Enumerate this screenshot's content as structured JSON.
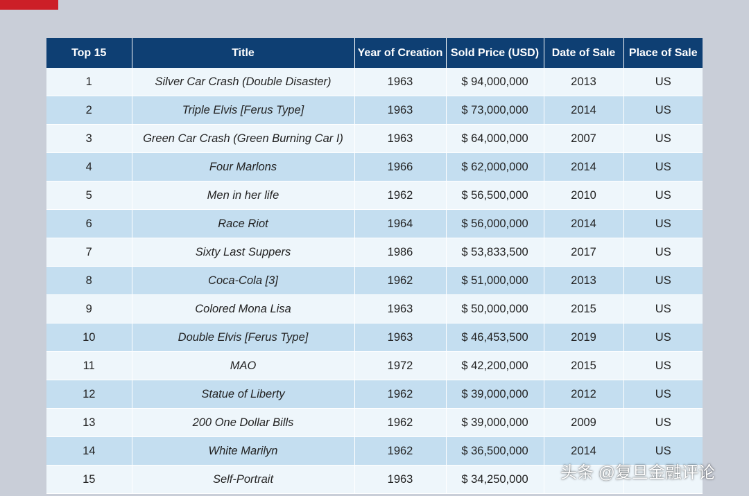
{
  "colors": {
    "header_bg": "#0e3f73",
    "row_light": "#eef6fb",
    "row_dark": "#c4def0",
    "page_bg": "#c9ced8",
    "accent_red": "#cc1f27"
  },
  "table": {
    "headers": [
      "Top 15",
      "Title",
      "Year of Creation",
      "Sold Price (USD)",
      "Date of Sale",
      "Place of Sale"
    ],
    "rows": [
      {
        "rank": "1",
        "title": "Silver Car Crash (Double Disaster)",
        "year": "1963",
        "price": "$ 94,000,000",
        "date": "2013",
        "place": "US"
      },
      {
        "rank": "2",
        "title": "Triple Elvis [Ferus Type]",
        "year": "1963",
        "price": "$ 73,000,000",
        "date": "2014",
        "place": "US"
      },
      {
        "rank": "3",
        "title": "Green Car Crash (Green Burning Car I)",
        "year": "1963",
        "price": "$ 64,000,000",
        "date": "2007",
        "place": "US"
      },
      {
        "rank": "4",
        "title": "Four Marlons",
        "year": "1966",
        "price": "$ 62,000,000",
        "date": "2014",
        "place": "US"
      },
      {
        "rank": "5",
        "title": "Men in her life",
        "year": "1962",
        "price": "$ 56,500,000",
        "date": "2010",
        "place": "US"
      },
      {
        "rank": "6",
        "title": "Race Riot",
        "year": "1964",
        "price": "$ 56,000,000",
        "date": "2014",
        "place": "US"
      },
      {
        "rank": "7",
        "title": "Sixty Last Suppers",
        "year": "1986",
        "price": "$ 53,833,500",
        "date": "2017",
        "place": "US"
      },
      {
        "rank": "8",
        "title": "Coca-Cola [3]",
        "year": "1962",
        "price": "$ 51,000,000",
        "date": "2013",
        "place": "US"
      },
      {
        "rank": "9",
        "title": "Colored Mona Lisa",
        "year": "1963",
        "price": "$ 50,000,000",
        "date": "2015",
        "place": "US"
      },
      {
        "rank": "10",
        "title": "Double Elvis [Ferus Type]",
        "year": "1963",
        "price": "$ 46,453,500",
        "date": "2019",
        "place": "US"
      },
      {
        "rank": "11",
        "title": "MAO",
        "year": "1972",
        "price": "$ 42,200,000",
        "date": "2015",
        "place": "US"
      },
      {
        "rank": "12",
        "title": "Statue of Liberty",
        "year": "1962",
        "price": "$ 39,000,000",
        "date": "2012",
        "place": "US"
      },
      {
        "rank": "13",
        "title": "200 One Dollar Bills",
        "year": "1962",
        "price": "$ 39,000,000",
        "date": "2009",
        "place": "US"
      },
      {
        "rank": "14",
        "title": "White Marilyn",
        "year": "1962",
        "price": "$ 36,500,000",
        "date": "2014",
        "place": "US"
      },
      {
        "rank": "15",
        "title": "Self-Portrait",
        "year": "1963",
        "price": "$ 34,250,000",
        "date": "",
        "place": ""
      }
    ]
  },
  "watermark": "头条 @复旦金融评论"
}
